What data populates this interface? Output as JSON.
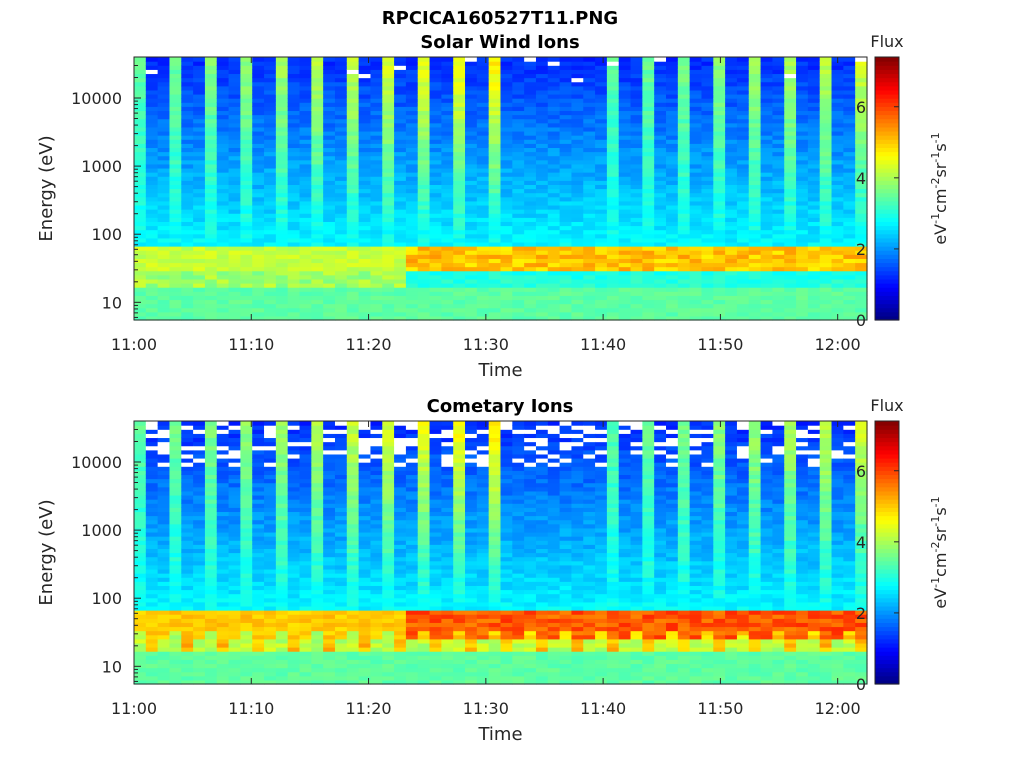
{
  "figure": {
    "title": "RPCICA160527T11.PNG"
  },
  "chart_data": [
    {
      "type": "heatmap",
      "title": "Solar Wind Ions",
      "xlabel": "Time",
      "ylabel": "Energy (eV)",
      "x_ticks": [
        "11:00",
        "11:10",
        "11:20",
        "11:30",
        "11:40",
        "11:50",
        "12:00"
      ],
      "y_ticks": [
        "10",
        "100",
        "1000",
        "10000"
      ],
      "y_scale": "log",
      "ylim": [
        5.5,
        40000
      ],
      "xlim_minutes": [
        0,
        62.5
      ],
      "colorbar": {
        "label": "Flux",
        "unit_text": "eV-1cm-2sr-1s-1",
        "ticks": [
          "0",
          "2",
          "4",
          "6"
        ],
        "range": [
          0,
          7.4
        ],
        "colormap": "jet"
      },
      "time_bins": 62,
      "energy_bins": 64,
      "features": {
        "periodic_spikes_minutes": 3.1,
        "peak_energy_band_eV": [
          30,
          65
        ],
        "peak_flux": 5.2
      }
    },
    {
      "type": "heatmap",
      "title": "Cometary Ions",
      "xlabel": "Time",
      "ylabel": "Energy (eV)",
      "x_ticks": [
        "11:00",
        "11:10",
        "11:20",
        "11:30",
        "11:40",
        "11:50",
        "12:00"
      ],
      "y_ticks": [
        "10",
        "100",
        "1000",
        "10000"
      ],
      "y_scale": "log",
      "ylim": [
        5.5,
        40000
      ],
      "xlim_minutes": [
        0,
        62.5
      ],
      "colorbar": {
        "label": "Flux",
        "unit_text": "eV-1cm-2sr-1s-1",
        "ticks": [
          "0",
          "2",
          "4",
          "6"
        ],
        "range": [
          0,
          7.4
        ],
        "colormap": "jet"
      },
      "time_bins": 62,
      "energy_bins": 64,
      "features": {
        "periodic_spikes_minutes": 3.1,
        "peak_energy_band_eV": [
          25,
          65
        ],
        "peak_flux": 6.0,
        "missing_data_high_energy": true
      }
    }
  ]
}
